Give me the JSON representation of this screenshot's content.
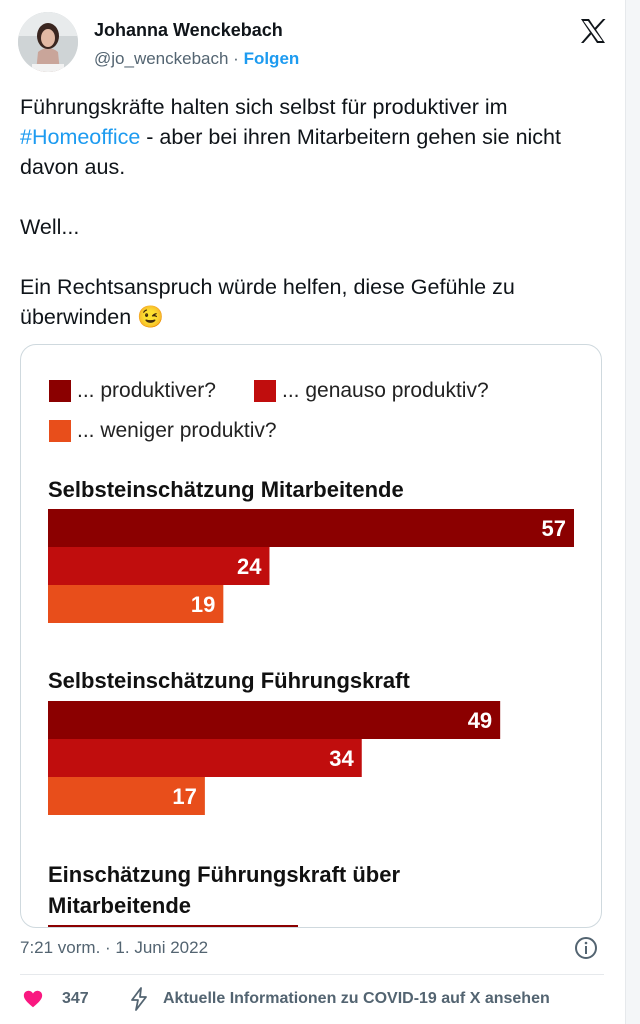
{
  "author": {
    "name": "Johanna Wenckebach",
    "handle": "@jo_wenckebach",
    "separator": " · ",
    "follow_label": "Folgen"
  },
  "tweet": {
    "line1_text": "Führungskräfte halten sich selbst für produktiver im",
    "hashtag": "#Homeoffice",
    "line2_text": " - aber bei ihren Mitarbeitern gehen sie nicht davon aus.",
    "para2": "Well...",
    "para3": "Ein Rechtsanspruch würde helfen, diese Gefühle zu überwinden 😉"
  },
  "colors": {
    "dark_red": "#8b0000",
    "red": "#c00d0d",
    "orange": "#e84e1b",
    "link": "#1d9bf0",
    "like": "#f91880"
  },
  "chart_data": {
    "type": "bar",
    "orientation": "horizontal",
    "legend": [
      "... produktiver?",
      "... genauso produktiv?",
      "... weniger produktiv?"
    ],
    "categories": [
      "Selbsteinschätzung Mitarbeitende",
      "Selbsteinschätzung Führungskraft",
      "Einschätzung Führungskraft über Mitarbeitende"
    ],
    "series": [
      {
        "name": "... produktiver?",
        "values": [
          57,
          49,
          null
        ]
      },
      {
        "name": "... genauso produktiv?",
        "values": [
          24,
          34,
          null
        ]
      },
      {
        "name": "... weniger produktiv?",
        "values": [
          19,
          17,
          null
        ]
      }
    ]
  },
  "footer": {
    "timestamp": "7:21 vorm. · 1. Juni 2022",
    "likes": "347",
    "covid_link": "Aktuelle Informationen zu COVID-19 auf X ansehen"
  }
}
